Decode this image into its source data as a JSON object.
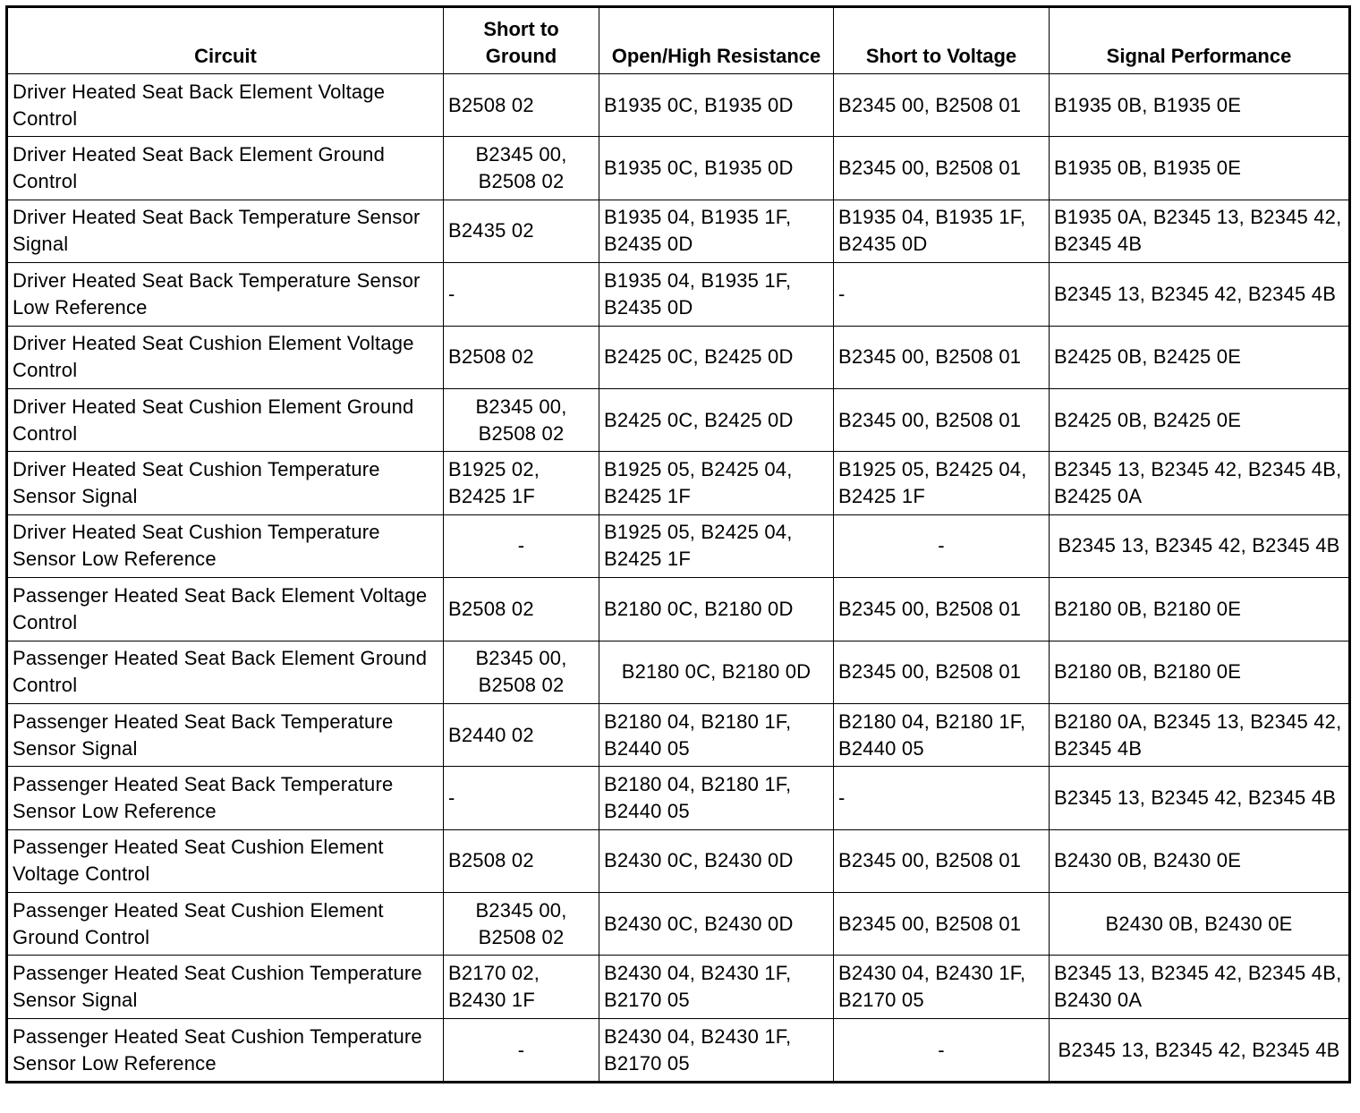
{
  "table": {
    "header": [
      "Circuit",
      "Short to Ground",
      "Open/High Resistance",
      "Short to Voltage",
      "Signal Performance"
    ],
    "rows": [
      [
        "Driver Heated Seat Back Element Voltage Control",
        "B2508 02",
        "B1935 0C, B1935 0D",
        "B2345 00, B2508 01",
        "B1935 0B, B1935 0E"
      ],
      [
        "Driver Heated Seat Back Element Ground Control",
        "B2345 00, B2508 02",
        "B1935 0C, B1935 0D",
        "B2345 00, B2508 01",
        "B1935 0B, B1935 0E"
      ],
      [
        "Driver Heated Seat Back Temperature Sensor Signal",
        "B2435 02",
        "B1935 04, B1935 1F, B2435 0D",
        "B1935 04, B1935 1F, B2435 0D",
        "B1935 0A, B2345 13, B2345 42, B2345 4B"
      ],
      [
        "Driver Heated Seat Back Temperature Sensor Low Reference",
        "-",
        "B1935 04, B1935 1F, B2435 0D",
        "-",
        "B2345 13, B2345 42, B2345 4B"
      ],
      [
        "Driver Heated Seat Cushion Element Voltage Control",
        "B2508 02",
        "B2425 0C, B2425 0D",
        "B2345 00, B2508 01",
        "B2425 0B, B2425 0E"
      ],
      [
        "Driver Heated Seat Cushion Element Ground Control",
        "B2345 00, B2508 02",
        "B2425 0C, B2425 0D",
        "B2345 00, B2508 01",
        "B2425 0B, B2425 0E"
      ],
      [
        "Driver Heated Seat Cushion Temperature Sensor Signal",
        "B1925 02, B2425 1F",
        "B1925 05, B2425 04, B2425 1F",
        "B1925 05, B2425 04, B2425 1F",
        "B2345 13, B2345 42, B2345 4B, B2425 0A"
      ],
      [
        "Driver Heated Seat Cushion Temperature Sensor Low Reference",
        "-",
        "B1925 05, B2425 04, B2425 1F",
        "-",
        "B2345 13, B2345 42, B2345 4B"
      ],
      [
        "Passenger Heated Seat Back Element Voltage Control",
        "B2508 02",
        "B2180 0C, B2180 0D",
        "B2345 00, B2508 01",
        "B2180 0B, B2180 0E"
      ],
      [
        "Passenger Heated Seat Back Element Ground Control",
        "B2345 00, B2508 02",
        "B2180 0C, B2180 0D",
        "B2345 00, B2508 01",
        "B2180 0B, B2180 0E"
      ],
      [
        "Passenger Heated Seat Back Temperature Sensor Signal",
        "B2440 02",
        "B2180 04, B2180 1F, B2440 05",
        "B2180 04, B2180 1F, B2440 05",
        "B2180 0A, B2345 13, B2345 42, B2345 4B"
      ],
      [
        "Passenger Heated Seat Back Temperature Sensor Low Reference",
        "-",
        "B2180 04, B2180 1F, B2440 05",
        "-",
        "B2345 13, B2345 42, B2345 4B"
      ],
      [
        "Passenger Heated Seat Cushion Element Voltage Control",
        "B2508 02",
        "B2430 0C, B2430 0D",
        "B2345 00, B2508 01",
        "B2430 0B, B2430 0E"
      ],
      [
        "Passenger Heated Seat Cushion Element Ground Control",
        "B2345 00, B2508 02",
        "B2430 0C, B2430 0D",
        "B2345 00, B2508 01",
        "B2430 0B, B2430 0E"
      ],
      [
        "Passenger Heated Seat Cushion Temperature Sensor Signal",
        "B2170 02, B2430 1F",
        "B2430 04, B2430 1F, B2170 05",
        "B2430 04, B2430 1F, B2170 05",
        "B2345 13, B2345 42, B2345 4B, B2430 0A"
      ],
      [
        "Passenger Heated Seat Cushion Temperature Sensor Low Reference",
        "-",
        "B2430 04, B2430 1F, B2170 05",
        "-",
        "B2345 13, B2345 42, B2345 4B"
      ]
    ]
  }
}
